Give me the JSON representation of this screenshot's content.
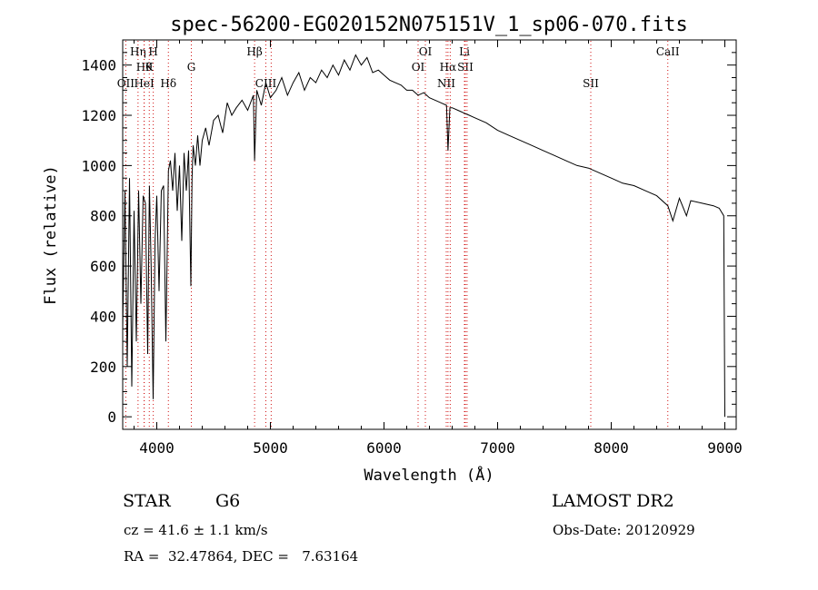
{
  "chart_data": {
    "type": "line",
    "title": "spec-56200-EG020152N075151V_1_sp06-070.fits",
    "xlabel": "Wavelength (Å)",
    "ylabel": "Flux (relative)",
    "xlim": [
      3700,
      9100
    ],
    "ylim": [
      -50,
      1500
    ],
    "xticks": [
      4000,
      5000,
      6000,
      7000,
      8000,
      9000
    ],
    "yticks": [
      0,
      200,
      400,
      600,
      800,
      1000,
      1200,
      1400
    ],
    "grid": false,
    "series_color": "#000000",
    "line_marker_color": "#d01010",
    "series": [
      {
        "x": [
          3700,
          3720,
          3740,
          3760,
          3780,
          3800,
          3820,
          3840,
          3860,
          3880,
          3900,
          3920,
          3935,
          3950,
          3968,
          3985,
          4000,
          4020,
          4040,
          4060,
          4080,
          4102,
          4120,
          4140,
          4160,
          4180,
          4200,
          4220,
          4240,
          4260,
          4280,
          4300,
          4310,
          4320,
          4340,
          4360,
          4380,
          4400,
          4430,
          4460,
          4500,
          4540,
          4580,
          4620,
          4660,
          4700,
          4750,
          4800,
          4850,
          4861,
          4880,
          4920,
          4960,
          5000,
          5050,
          5100,
          5150,
          5200,
          5250,
          5300,
          5350,
          5400,
          5450,
          5500,
          5550,
          5600,
          5650,
          5700,
          5750,
          5800,
          5850,
          5900,
          5950,
          6000,
          6050,
          6100,
          6150,
          6200,
          6250,
          6300,
          6350,
          6400,
          6450,
          6500,
          6550,
          6563,
          6580,
          6600,
          6650,
          6700,
          6750,
          6800,
          6900,
          7000,
          7100,
          7200,
          7300,
          7400,
          7500,
          7600,
          7700,
          7800,
          7900,
          8000,
          8100,
          8200,
          8300,
          8400,
          8498,
          8542,
          8600,
          8662,
          8700,
          8800,
          8900,
          8950,
          8990,
          9000
        ],
        "y": [
          350,
          900,
          200,
          950,
          120,
          820,
          300,
          900,
          450,
          880,
          850,
          250,
          920,
          600,
          70,
          700,
          880,
          500,
          900,
          920,
          300,
          980,
          1020,
          900,
          1050,
          820,
          1000,
          700,
          1050,
          900,
          1060,
          520,
          950,
          1080,
          1000,
          1120,
          1000,
          1100,
          1150,
          1080,
          1180,
          1200,
          1130,
          1250,
          1200,
          1230,
          1260,
          1220,
          1280,
          1020,
          1300,
          1240,
          1330,
          1270,
          1300,
          1350,
          1280,
          1330,
          1370,
          1300,
          1350,
          1330,
          1380,
          1350,
          1400,
          1360,
          1420,
          1380,
          1440,
          1400,
          1430,
          1370,
          1380,
          1360,
          1340,
          1330,
          1320,
          1300,
          1300,
          1280,
          1290,
          1270,
          1260,
          1250,
          1240,
          1060,
          1230,
          1230,
          1220,
          1210,
          1200,
          1190,
          1170,
          1140,
          1120,
          1100,
          1080,
          1060,
          1040,
          1020,
          1000,
          990,
          970,
          950,
          930,
          920,
          900,
          880,
          840,
          780,
          870,
          800,
          860,
          850,
          840,
          830,
          800,
          0
        ]
      }
    ],
    "line_markers": [
      {
        "wave": 3727,
        "label": "OII",
        "row": 3
      },
      {
        "wave": 3835,
        "label": "Hη",
        "row": 1
      },
      {
        "wave": 3889,
        "label": "Hθ",
        "row": 2
      },
      {
        "wave": 3889,
        "label": "HeI",
        "row": 3
      },
      {
        "wave": 3934,
        "label": "K",
        "row": 2
      },
      {
        "wave": 3969,
        "label": "H",
        "row": 1
      },
      {
        "wave": 4102,
        "label": "Hδ",
        "row": 3
      },
      {
        "wave": 4304,
        "label": "G",
        "row": 2
      },
      {
        "wave": 4861,
        "label": "Hβ",
        "row": 1
      },
      {
        "wave": 4960,
        "label": "CIII",
        "row": 3
      },
      {
        "wave": 5007,
        "label": "",
        "row": 3
      },
      {
        "wave": 6300,
        "label": "OI",
        "row": 2
      },
      {
        "wave": 6364,
        "label": "OI",
        "row": 1
      },
      {
        "wave": 6548,
        "label": "NII",
        "row": 3
      },
      {
        "wave": 6563,
        "label": "Hα",
        "row": 2
      },
      {
        "wave": 6583,
        "label": "",
        "row": 3
      },
      {
        "wave": 6708,
        "label": "Li",
        "row": 1
      },
      {
        "wave": 6716,
        "label": "SII",
        "row": 2
      },
      {
        "wave": 6731,
        "label": "",
        "row": 2
      },
      {
        "wave": 7820,
        "label": "SII",
        "row": 3
      },
      {
        "wave": 8498,
        "label": "CaII",
        "row": 1
      }
    ]
  },
  "info": {
    "object_type": "STAR",
    "subclass": "G6",
    "survey": "LAMOST DR2",
    "redshift": "cz = 41.6 ± 1.1 km/s",
    "obs_date": "Obs-Date: 20120929",
    "coords": "RA =  32.47864, DEC =   7.63164"
  }
}
